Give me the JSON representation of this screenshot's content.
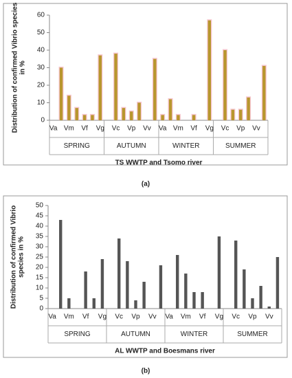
{
  "chart_data": [
    {
      "type": "bar",
      "caption": "(a)",
      "y_label": [
        "Distribution of confirmed Vibrio species",
        "in %"
      ],
      "x_label": "TS WWTP and Tsomo river",
      "groups": [
        "SPRING",
        "AUTUMN",
        "WINTER",
        "SUMMER"
      ],
      "categories": [
        "Va",
        null,
        "Vm",
        null,
        "Vf",
        null,
        "Vg",
        null,
        "Vc",
        null,
        "Vp",
        null,
        "Vv",
        null,
        "Va",
        null,
        "Vm",
        null,
        "Vf",
        null,
        "Vg",
        null,
        "Vc",
        null,
        "Vp",
        null,
        "Vv",
        null
      ],
      "values": [
        0,
        30,
        14,
        7,
        3,
        3,
        37,
        0,
        38,
        7,
        5,
        10,
        0,
        35,
        3,
        12,
        3,
        0,
        3,
        0,
        57,
        0,
        40,
        6,
        6,
        13,
        0,
        31
      ],
      "color": "#b8962e",
      "glow": "#f4b6c2",
      "ylim": [
        0,
        60
      ],
      "yticks": [
        0,
        10,
        20,
        30,
        40,
        50,
        60
      ]
    },
    {
      "type": "bar",
      "caption": "(b)",
      "y_label": [
        "Distribution of confirmed Vibrio",
        "species in %"
      ],
      "x_label": "AL WWTP and Boesmans river",
      "groups": [
        "SPRING",
        "AUTUMN",
        "WINTER",
        "SUMMER"
      ],
      "categories": [
        "Va",
        null,
        "Vm",
        null,
        "Vf",
        null,
        "Vg",
        null,
        "Vc",
        null,
        "Vp",
        null,
        "Vv",
        null,
        "Va",
        null,
        "Vm",
        null,
        "Vf",
        null,
        "Vg",
        null,
        "Vc",
        null,
        "Vp",
        null,
        "Vv",
        null
      ],
      "values": [
        0,
        43,
        5,
        0,
        18,
        5,
        24,
        0,
        34,
        23,
        4,
        13,
        0,
        21,
        0,
        26,
        17,
        8,
        8,
        0,
        35,
        0,
        33,
        19,
        5,
        11,
        1,
        25
      ],
      "color": "#555555",
      "ylim": [
        0,
        50
      ],
      "yticks": [
        0,
        5,
        10,
        15,
        20,
        25,
        30,
        35,
        40,
        45,
        50
      ]
    }
  ]
}
